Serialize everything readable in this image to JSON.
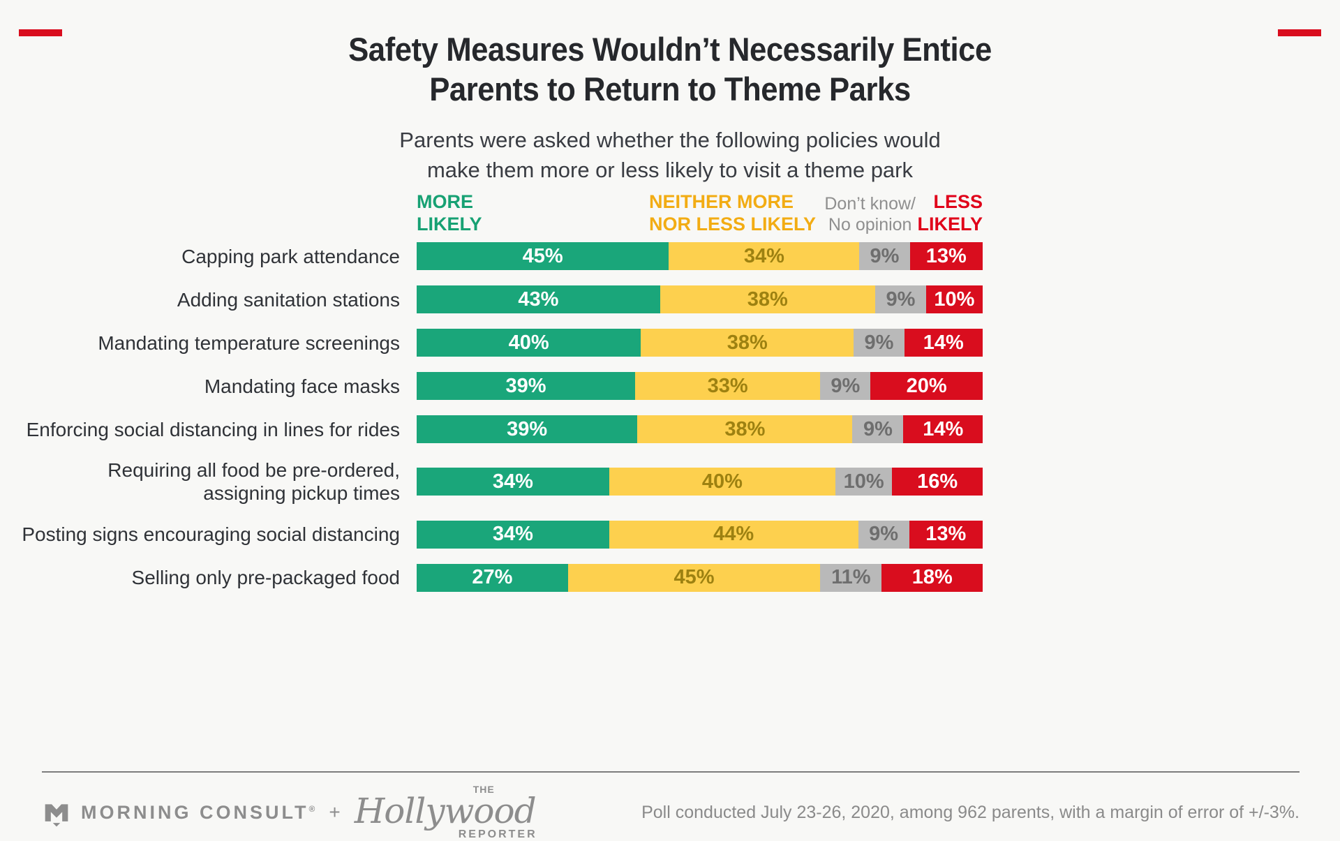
{
  "colors": {
    "green": "#1aa67a",
    "yellow": "#fdd04e",
    "yellow_text": "#9d8111",
    "gray": "#b9b9b9",
    "gray_text": "#6e6e6e",
    "red": "#d90d1e",
    "legend_green": "#17a173",
    "legend_gold": "#f2ac13",
    "legend_gray": "#8f8f8f",
    "legend_red": "#e00019"
  },
  "header": {
    "title_line1": "Safety Measures Wouldn’t Necessarily Entice",
    "title_line2": "Parents to Return to Theme Parks",
    "subtitle_line1": "Parents were asked whether the following policies would",
    "subtitle_line2": "make them more or less likely to visit a theme park"
  },
  "legend": {
    "more": {
      "line1": "MORE",
      "line2": "LIKELY"
    },
    "neither": {
      "line1": "NEITHER MORE",
      "line2": "NOR LESS LIKELY"
    },
    "dont_know": {
      "line1": "Don’t know/",
      "line2": "No opinion"
    },
    "less": {
      "line1": "LESS",
      "line2": "LIKELY"
    }
  },
  "chart_data": {
    "type": "bar",
    "orientation": "horizontal",
    "stacked": true,
    "unit": "%",
    "title": "Safety Measures Wouldn’t Necessarily Entice Parents to Return to Theme Parks",
    "subtitle": "Parents were asked whether the following policies would make them more or less likely to visit a theme park",
    "legend_position": "top",
    "series_names": [
      "More likely",
      "Neither more nor less likely",
      "Don’t know/No opinion",
      "Less likely"
    ],
    "categories": [
      "Capping park attendance",
      "Adding sanitation stations",
      "Mandating temperature screenings",
      "Mandating face masks",
      "Enforcing social distancing in lines for rides",
      "Requiring all food be pre-ordered, assigning pickup times",
      "Posting signs encouraging social distancing",
      "Selling only pre-packaged food"
    ],
    "rows": [
      {
        "label_lines": [
          "Capping park attendance"
        ],
        "values": [
          45,
          34,
          9,
          13
        ]
      },
      {
        "label_lines": [
          "Adding sanitation stations"
        ],
        "values": [
          43,
          38,
          9,
          10
        ]
      },
      {
        "label_lines": [
          "Mandating temperature screenings"
        ],
        "values": [
          40,
          38,
          9,
          14
        ]
      },
      {
        "label_lines": [
          "Mandating face masks"
        ],
        "values": [
          39,
          33,
          9,
          20
        ]
      },
      {
        "label_lines": [
          "Enforcing social distancing in lines for rides"
        ],
        "values": [
          39,
          38,
          9,
          14
        ]
      },
      {
        "label_lines": [
          "Requiring all food be pre-ordered,",
          "assigning pickup times"
        ],
        "values": [
          34,
          40,
          10,
          16
        ]
      },
      {
        "label_lines": [
          "Posting signs encouraging social distancing"
        ],
        "values": [
          34,
          44,
          9,
          13
        ]
      },
      {
        "label_lines": [
          "Selling only pre-packaged food"
        ],
        "values": [
          27,
          45,
          11,
          18
        ]
      }
    ]
  },
  "footer": {
    "morning_consult": "MORNING CONSULT",
    "registered_mark": "®",
    "plus": "+",
    "thr_the": "THE",
    "thr_hollywood": "Hollywood",
    "thr_reporter": "REPORTER",
    "note": "Poll conducted July 23-26, 2020, among 962 parents, with a margin of error of +/-3%."
  }
}
